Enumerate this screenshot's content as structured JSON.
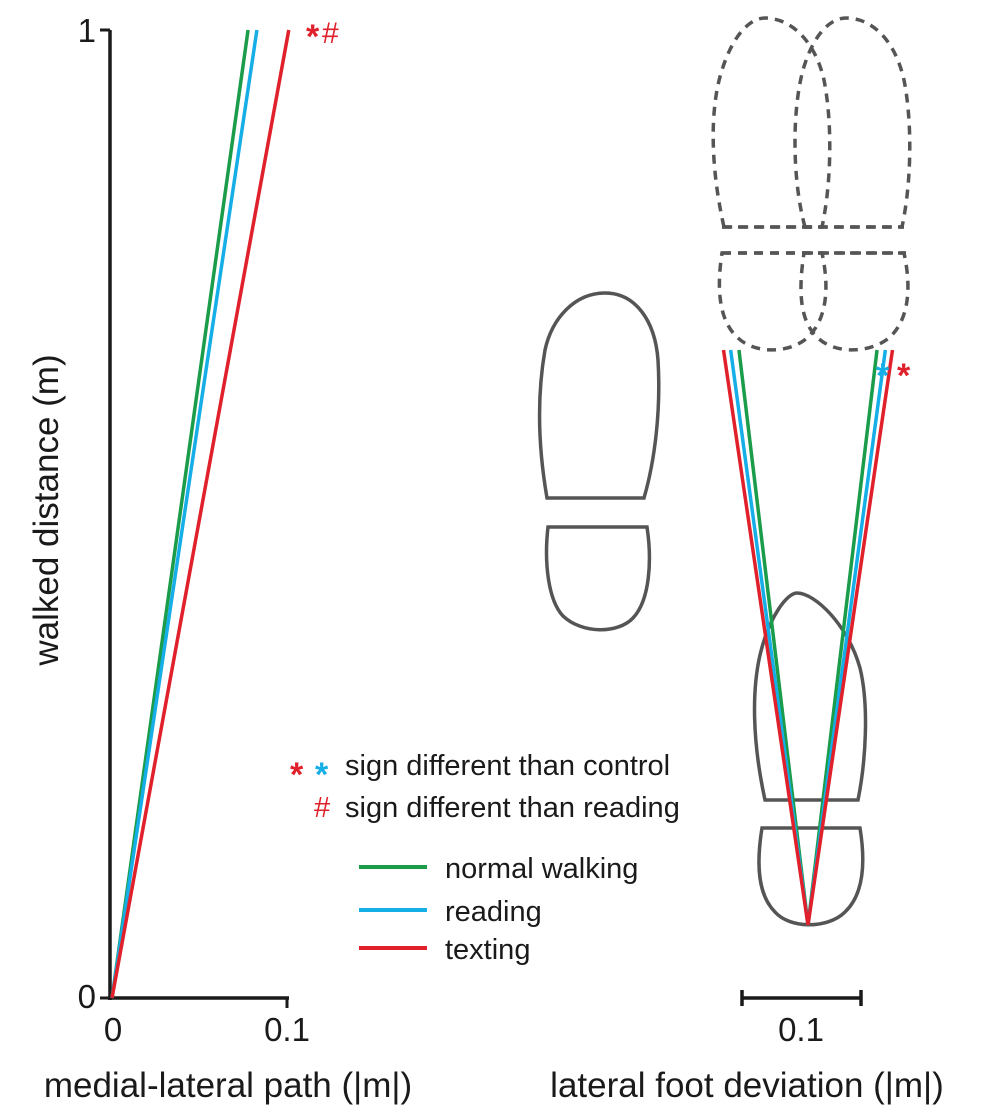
{
  "colors": {
    "normal_walking": "#1a9c4a",
    "reading": "#16aee6",
    "texting": "#e0202a",
    "axis": "#1a1a1a",
    "foot_outline": "#555555"
  },
  "legend": {
    "sig_line1": "sign different than control",
    "sig_line2": "sign different than reading",
    "star": "*",
    "hash": "#",
    "items": [
      {
        "label": "normal walking",
        "color": "#1a9c4a"
      },
      {
        "label": "reading",
        "color": "#16aee6"
      },
      {
        "label": "texting",
        "color": "#e0202a"
      }
    ]
  },
  "chart_data": [
    {
      "type": "line",
      "xlabel": "medial-lateral path (|m|)",
      "ylabel": "walked distance (m)",
      "xlim": [
        0,
        0.1
      ],
      "ylim": [
        0,
        1
      ],
      "xticks": [
        "0",
        "0.1"
      ],
      "yticks": [
        "0",
        "1"
      ],
      "series": [
        {
          "name": "normal walking",
          "x": [
            0,
            0.078
          ],
          "y": [
            0,
            1
          ]
        },
        {
          "name": "reading",
          "x": [
            0,
            0.083
          ],
          "y": [
            0,
            1
          ]
        },
        {
          "name": "texting",
          "x": [
            0,
            0.101
          ],
          "y": [
            0,
            1
          ]
        }
      ],
      "annotations": {
        "texting": "*#"
      }
    },
    {
      "type": "line",
      "xlabel": "lateral foot deviation (|m|)",
      "scale_bar_label": "0.1",
      "scale_bar_value": 0.1,
      "series": [
        {
          "name": "normal walking",
          "deviation": 0.058
        },
        {
          "name": "reading",
          "deviation": 0.065
        },
        {
          "name": "texting",
          "deviation": 0.071
        }
      ],
      "annotations": {
        "reading": "*",
        "texting": "*"
      }
    }
  ]
}
